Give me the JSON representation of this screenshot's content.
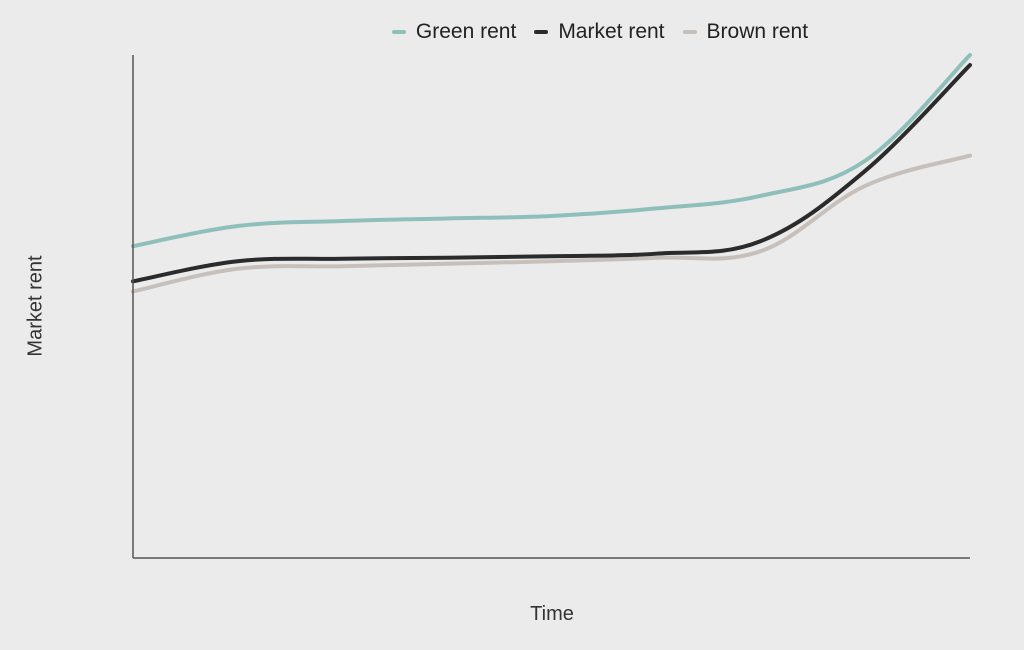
{
  "chart_data": {
    "type": "line",
    "title": "",
    "xlabel": "Time",
    "ylabel": "Market rent",
    "x": [
      0,
      1,
      2,
      3,
      4,
      5,
      6,
      7,
      8
    ],
    "xlim": [
      0,
      8
    ],
    "ylim": [
      0,
      10
    ],
    "grid": false,
    "legend_position": "top",
    "series": [
      {
        "name": "Green rent",
        "color": "#8fbfbb",
        "values": [
          6.2,
          6.6,
          6.7,
          6.75,
          6.8,
          6.95,
          7.2,
          7.9,
          10.0
        ]
      },
      {
        "name": "Market rent",
        "color": "#2b2b2b",
        "values": [
          5.5,
          5.9,
          5.95,
          5.97,
          6.0,
          6.05,
          6.3,
          7.7,
          9.8
        ]
      },
      {
        "name": "Brown rent",
        "color": "#c7bfba",
        "values": [
          5.3,
          5.75,
          5.8,
          5.85,
          5.9,
          5.97,
          6.1,
          7.4,
          8.0
        ]
      }
    ]
  }
}
